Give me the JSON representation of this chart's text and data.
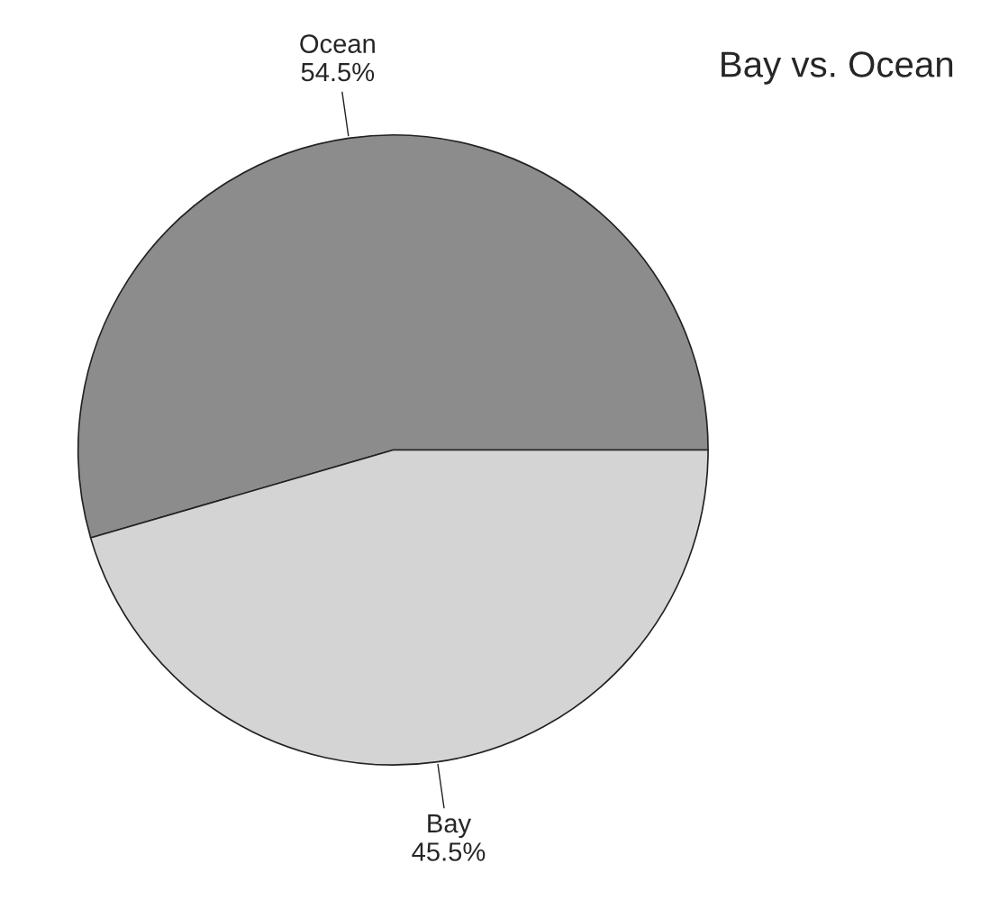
{
  "chart_data": {
    "type": "pie",
    "title": "Bay vs. Ocean",
    "categories": [
      "Ocean",
      "Bay"
    ],
    "values": [
      54.5,
      45.5
    ],
    "value_labels": [
      "54.5%",
      "45.5%"
    ],
    "colors": [
      "#8c8c8c",
      "#d4d4d4"
    ],
    "legend": false
  }
}
